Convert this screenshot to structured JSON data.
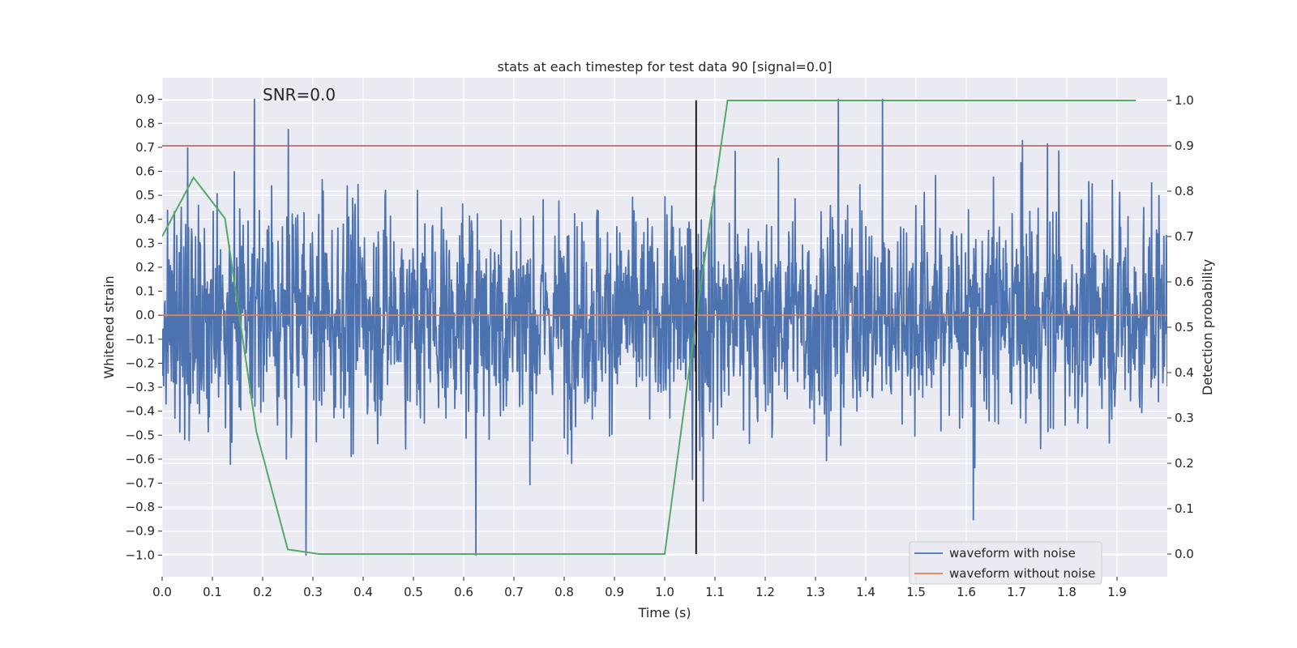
{
  "chart_data": {
    "type": "line",
    "title": "stats at each timestep for test data 90 [signal=0.0]",
    "annotation": "SNR=0.0",
    "xlabel": "Time (s)",
    "ylabel_left": "Whitened strain",
    "ylabel_right": "Detection probability",
    "xlim": [
      0.0,
      2.0
    ],
    "ylim_left": [
      -1.09,
      0.99
    ],
    "ylim_right": [
      -0.05,
      1.05
    ],
    "x_ticks": [
      "0.0",
      "0.1",
      "0.2",
      "0.3",
      "0.4",
      "0.5",
      "0.6",
      "0.7",
      "0.8",
      "0.9",
      "1.0",
      "1.1",
      "1.2",
      "1.3",
      "1.4",
      "1.5",
      "1.6",
      "1.7",
      "1.8",
      "1.9"
    ],
    "y_left_ticks": [
      "−1.0",
      "−0.9",
      "−0.8",
      "−0.7",
      "−0.6",
      "−0.5",
      "−0.4",
      "−0.3",
      "−0.2",
      "−0.1",
      "0.0",
      "0.1",
      "0.2",
      "0.3",
      "0.4",
      "0.5",
      "0.6",
      "0.7",
      "0.8",
      "0.9"
    ],
    "y_right_ticks": [
      "0.0",
      "0.1",
      "0.2",
      "0.3",
      "0.4",
      "0.5",
      "0.6",
      "0.7",
      "0.8",
      "0.9",
      "1.0"
    ],
    "threshold": {
      "value": 0.9,
      "axis": "right",
      "color": "#c44e52"
    },
    "marker_time": 1.0625,
    "series": [
      {
        "name": "waveform with noise",
        "color": "#4c72b0",
        "axis": "left",
        "kind": "noise",
        "samples": 2048,
        "amplitude_approx": 0.9,
        "seed": 90
      },
      {
        "name": "waveform without noise",
        "color": "#dd8452",
        "axis": "left",
        "x": [
          0.0,
          2.0
        ],
        "y": [
          0.0,
          0.0
        ]
      },
      {
        "name": "detection probability",
        "color": "#55a868",
        "axis": "right",
        "x": [
          0.0,
          0.0625,
          0.125,
          0.1875,
          0.25,
          0.3125,
          0.375,
          0.4375,
          0.5,
          0.5625,
          0.625,
          0.6875,
          0.75,
          0.8125,
          0.875,
          0.9375,
          1.0,
          1.0625,
          1.125,
          1.1875,
          1.25,
          1.3125,
          1.375,
          1.4375,
          1.5,
          1.5625,
          1.625,
          1.6875,
          1.75,
          1.8125,
          1.875,
          1.9375
        ],
        "y": [
          0.7,
          0.83,
          0.74,
          0.27,
          0.01,
          0.0,
          0.0,
          0.0,
          0.0,
          0.0,
          0.0,
          0.0,
          0.0,
          0.0,
          0.0,
          0.0,
          0.0,
          0.52,
          1.0,
          1.0,
          1.0,
          1.0,
          1.0,
          1.0,
          1.0,
          1.0,
          1.0,
          1.0,
          1.0,
          1.0,
          1.0,
          1.0
        ]
      }
    ],
    "legend": {
      "position": "bottom-right",
      "entries": [
        {
          "label": "waveform with noise",
          "color": "#4c72b0"
        },
        {
          "label": "waveform without noise",
          "color": "#dd8452"
        }
      ]
    }
  }
}
